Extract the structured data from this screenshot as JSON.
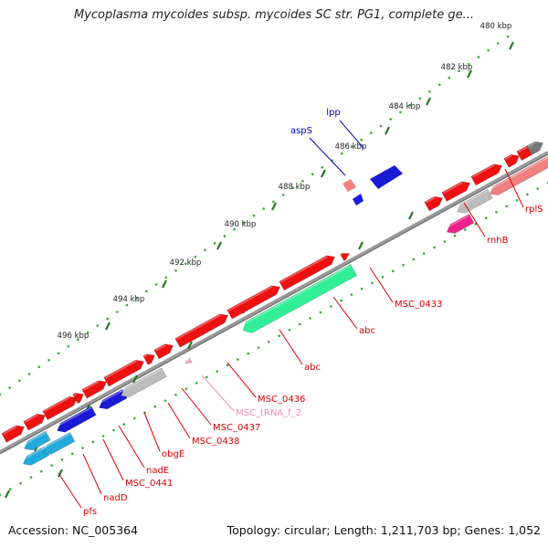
{
  "title": "Mycoplasma mycoides subsp. mycoides SC str. PG1, complete ge...",
  "footer": {
    "accession": "Accession: NC_005364",
    "summary": "Topology: circular; Length: 1,211,703 bp; Genes: 1,052"
  },
  "ticks": [
    "480 kbp",
    "482 kbp",
    "484 kbp",
    "486 kbp",
    "488 kbp",
    "490 kbp",
    "492 kbp",
    "494 kbp",
    "496 kbp"
  ],
  "gene_labels": [
    "lpp",
    "aspS",
    "rplS",
    "rnhB",
    "MSC_0433",
    "abc",
    "abc",
    "MSC_0436",
    "MSC_tRNA_f_2",
    "MSC_0437",
    "MSC_0438",
    "obgE",
    "nadE",
    "MSC_0441",
    "nadD",
    "pfs"
  ],
  "colors": {
    "cds": "#ee1111",
    "cds_light": "#f08080",
    "trna": "#f2a0c8",
    "blue": "#1a1ad6",
    "green": "#33ee99",
    "gray": "#bbbbbb",
    "magenta": "#ee2288",
    "cyan": "#22aadd",
    "backbone": "#888888",
    "tick_major": "#227722",
    "tick_minor": "#33aa33",
    "label_red": "#dd0000",
    "label_blue": "#0000cc",
    "label_pink": "#ee88bb"
  }
}
